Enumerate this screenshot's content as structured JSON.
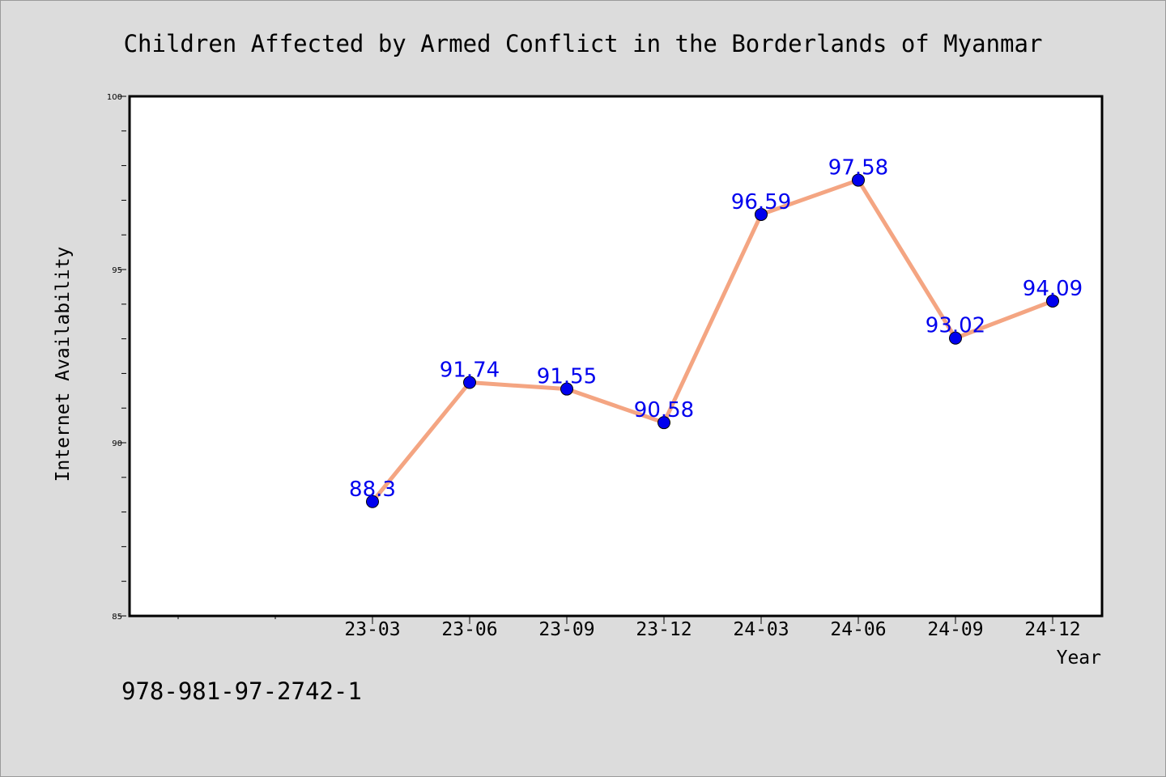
{
  "footer": {
    "isbn": "978-981-97-2742-1"
  },
  "chart_data": {
    "type": "line",
    "title": "Children Affected by Armed Conflict in the Borderlands of Myanmar",
    "xlabel": "Year",
    "ylabel": "Internet Availability",
    "categories": [
      "23-03",
      "23-06",
      "23-09",
      "23-12",
      "24-03",
      "24-06",
      "24-09",
      "24-12"
    ],
    "series": [
      {
        "values": [
          88.3,
          91.74,
          91.55,
          90.58,
          96.59,
          97.58,
          93.02,
          94.09
        ],
        "labels": [
          "88.3",
          "91.74",
          "91.55",
          "90.58",
          "96.59",
          "97.58",
          "93.02",
          "94.09"
        ]
      }
    ],
    "ylim": [
      85,
      100
    ],
    "yticks": [
      85,
      90,
      95,
      100
    ],
    "ytick_labels": [
      "85",
      "90",
      "95",
      "100"
    ],
    "grid": false,
    "legend": "none",
    "colors": {
      "background": "#dcdcdc",
      "plot_background": "#ffffff",
      "line": "#f4a582",
      "marker": "#0000ee",
      "data_label": "#0000ee",
      "axis": "#000000"
    }
  }
}
